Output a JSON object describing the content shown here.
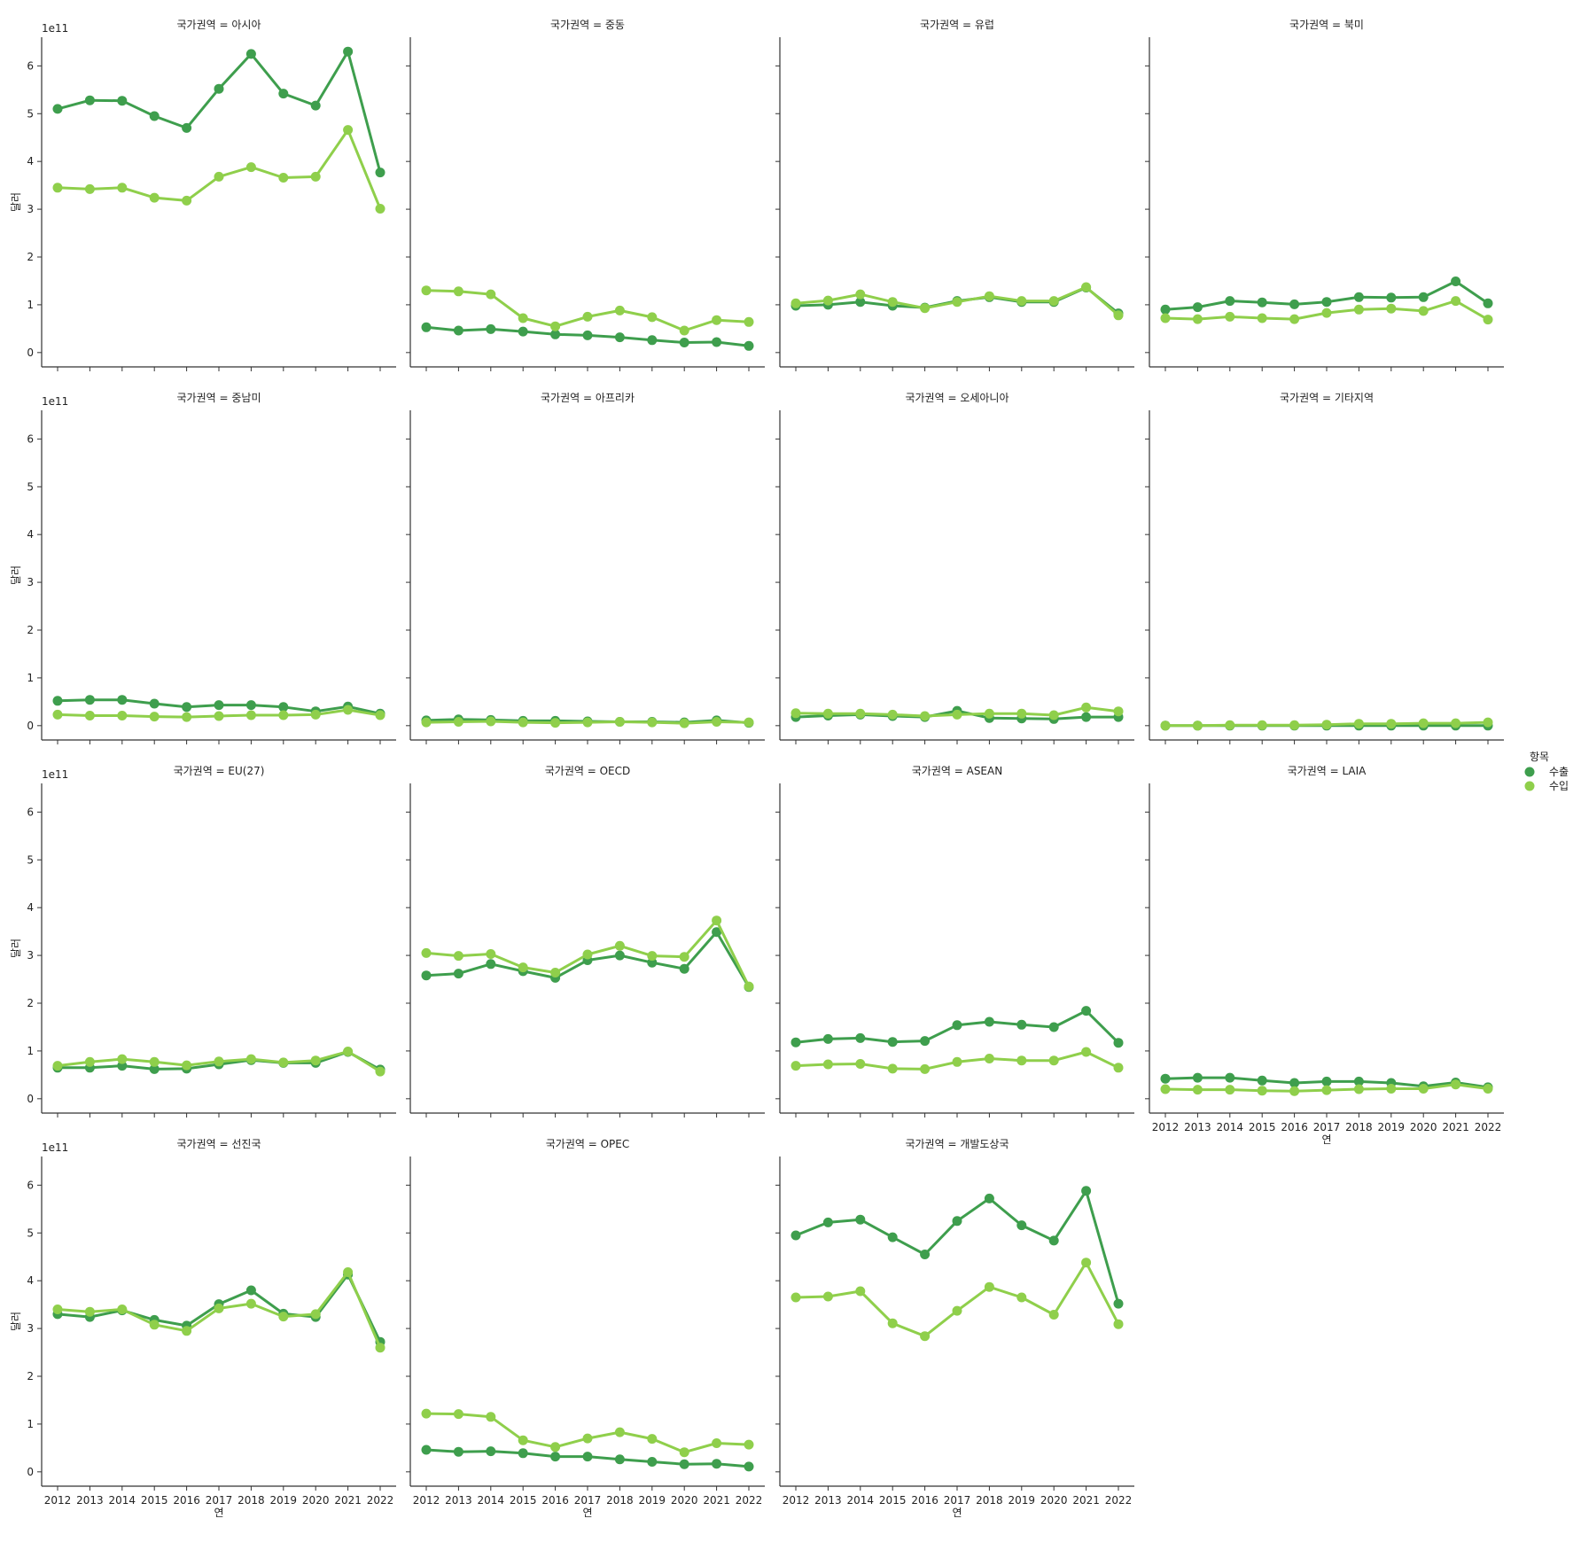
{
  "chart_data": {
    "type": "line",
    "facet_label": "국가권역",
    "facet_separator": " = ",
    "ylabel": "달러",
    "xlabel": "연",
    "y_scale_label": "1e11",
    "yticks": [
      0,
      1,
      2,
      3,
      4,
      5,
      6
    ],
    "ylim": [
      -0.3,
      6.6
    ],
    "x": [
      "2012",
      "2013",
      "2014",
      "2015",
      "2016",
      "2017",
      "2018",
      "2019",
      "2020",
      "2021",
      "2022"
    ],
    "legend": {
      "title": "항목",
      "placement": "right",
      "entries": [
        "수출",
        "수입"
      ]
    },
    "colors": {
      "수출": "#3e9e4d",
      "수입": "#8fcf4b"
    },
    "panels": [
      {
        "region": "아시아",
        "series": [
          {
            "name": "수출",
            "values": [
              5.1,
              5.28,
              5.27,
              4.95,
              4.7,
              5.52,
              6.25,
              5.42,
              5.17,
              6.3,
              3.77
            ]
          },
          {
            "name": "수입",
            "values": [
              3.45,
              3.42,
              3.45,
              3.24,
              3.18,
              3.68,
              3.88,
              3.66,
              3.68,
              4.66,
              3.01
            ]
          }
        ]
      },
      {
        "region": "중동",
        "series": [
          {
            "name": "수출",
            "values": [
              0.53,
              0.46,
              0.49,
              0.44,
              0.38,
              0.36,
              0.32,
              0.26,
              0.21,
              0.22,
              0.14
            ]
          },
          {
            "name": "수입",
            "values": [
              1.3,
              1.28,
              1.22,
              0.72,
              0.55,
              0.75,
              0.88,
              0.74,
              0.46,
              0.68,
              0.64
            ]
          }
        ]
      },
      {
        "region": "유럽",
        "series": [
          {
            "name": "수출",
            "values": [
              0.98,
              1.0,
              1.06,
              0.98,
              0.94,
              1.08,
              1.16,
              1.06,
              1.06,
              1.36,
              0.82
            ]
          },
          {
            "name": "수입",
            "values": [
              1.03,
              1.09,
              1.22,
              1.06,
              0.93,
              1.06,
              1.18,
              1.08,
              1.08,
              1.37,
              0.78
            ]
          }
        ]
      },
      {
        "region": "북미",
        "series": [
          {
            "name": "수출",
            "values": [
              0.9,
              0.95,
              1.08,
              1.05,
              1.01,
              1.06,
              1.16,
              1.15,
              1.16,
              1.49,
              1.03
            ]
          },
          {
            "name": "수입",
            "values": [
              0.72,
              0.7,
              0.75,
              0.72,
              0.7,
              0.83,
              0.9,
              0.92,
              0.87,
              1.08,
              0.69
            ]
          }
        ]
      },
      {
        "region": "중남미",
        "series": [
          {
            "name": "수출",
            "values": [
              0.52,
              0.54,
              0.54,
              0.46,
              0.39,
              0.43,
              0.43,
              0.39,
              0.3,
              0.4,
              0.25
            ]
          },
          {
            "name": "수입",
            "values": [
              0.23,
              0.21,
              0.21,
              0.19,
              0.18,
              0.2,
              0.22,
              0.22,
              0.23,
              0.33,
              0.22
            ]
          }
        ]
      },
      {
        "region": "아프리카",
        "series": [
          {
            "name": "수출",
            "values": [
              0.11,
              0.13,
              0.12,
              0.1,
              0.1,
              0.09,
              0.08,
              0.08,
              0.07,
              0.11,
              0.06
            ]
          },
          {
            "name": "수입",
            "values": [
              0.07,
              0.08,
              0.09,
              0.07,
              0.06,
              0.07,
              0.08,
              0.07,
              0.05,
              0.08,
              0.07
            ]
          }
        ]
      },
      {
        "region": "오세아니아",
        "series": [
          {
            "name": "수출",
            "values": [
              0.18,
              0.21,
              0.23,
              0.2,
              0.18,
              0.31,
              0.16,
              0.15,
              0.14,
              0.18,
              0.18
            ]
          },
          {
            "name": "수입",
            "values": [
              0.26,
              0.25,
              0.25,
              0.23,
              0.2,
              0.23,
              0.25,
              0.25,
              0.22,
              0.38,
              0.3
            ]
          }
        ]
      },
      {
        "region": "기타지역",
        "series": [
          {
            "name": "수출",
            "values": [
              0.0,
              0.0,
              0.0,
              0.0,
              0.0,
              0.0,
              0.0,
              0.0,
              0.0,
              0.0,
              0.0
            ]
          },
          {
            "name": "수입",
            "values": [
              0.0,
              0.0,
              0.01,
              0.01,
              0.01,
              0.02,
              0.04,
              0.04,
              0.05,
              0.05,
              0.07
            ]
          }
        ]
      },
      {
        "region": "EU(27)",
        "series": [
          {
            "name": "수출",
            "values": [
              0.65,
              0.65,
              0.69,
              0.62,
              0.63,
              0.72,
              0.81,
              0.75,
              0.75,
              0.98,
              0.61
            ]
          },
          {
            "name": "수입",
            "values": [
              0.69,
              0.77,
              0.83,
              0.77,
              0.7,
              0.78,
              0.83,
              0.76,
              0.8,
              0.99,
              0.57
            ]
          }
        ]
      },
      {
        "region": "OECD",
        "series": [
          {
            "name": "수출",
            "values": [
              2.58,
              2.62,
              2.82,
              2.67,
              2.53,
              2.9,
              3.0,
              2.85,
              2.72,
              3.49,
              2.34
            ]
          },
          {
            "name": "수입",
            "values": [
              3.05,
              2.99,
              3.03,
              2.75,
              2.64,
              3.02,
              3.2,
              2.99,
              2.97,
              3.73,
              2.35
            ]
          }
        ]
      },
      {
        "region": "ASEAN",
        "series": [
          {
            "name": "수출",
            "values": [
              1.18,
              1.25,
              1.27,
              1.19,
              1.21,
              1.54,
              1.61,
              1.55,
              1.5,
              1.84,
              1.17
            ]
          },
          {
            "name": "수입",
            "values": [
              0.69,
              0.72,
              0.73,
              0.63,
              0.62,
              0.77,
              0.84,
              0.8,
              0.8,
              0.98,
              0.65
            ]
          }
        ]
      },
      {
        "region": "LAIA",
        "series": [
          {
            "name": "수출",
            "values": [
              0.42,
              0.44,
              0.44,
              0.38,
              0.33,
              0.36,
              0.36,
              0.33,
              0.26,
              0.34,
              0.24
            ]
          },
          {
            "name": "수입",
            "values": [
              0.2,
              0.19,
              0.19,
              0.17,
              0.16,
              0.18,
              0.2,
              0.21,
              0.21,
              0.3,
              0.21
            ]
          }
        ]
      },
      {
        "region": "선진국",
        "series": [
          {
            "name": "수출",
            "values": [
              3.3,
              3.24,
              3.38,
              3.18,
              3.06,
              3.51,
              3.8,
              3.31,
              3.24,
              4.13,
              2.72
            ]
          },
          {
            "name": "수입",
            "values": [
              3.4,
              3.35,
              3.4,
              3.08,
              2.95,
              3.42,
              3.52,
              3.25,
              3.3,
              4.18,
              2.6
            ]
          }
        ]
      },
      {
        "region": "OPEC",
        "series": [
          {
            "name": "수출",
            "values": [
              0.46,
              0.42,
              0.43,
              0.39,
              0.32,
              0.32,
              0.26,
              0.21,
              0.16,
              0.17,
              0.11
            ]
          },
          {
            "name": "수입",
            "values": [
              1.22,
              1.21,
              1.15,
              0.66,
              0.52,
              0.7,
              0.83,
              0.69,
              0.41,
              0.6,
              0.57
            ]
          }
        ]
      },
      {
        "region": "개발도상국",
        "series": [
          {
            "name": "수출",
            "values": [
              4.95,
              5.22,
              5.28,
              4.91,
              4.55,
              5.25,
              5.72,
              5.16,
              4.84,
              5.88,
              3.52
            ]
          },
          {
            "name": "수입",
            "values": [
              3.65,
              3.67,
              3.78,
              3.11,
              2.84,
              3.37,
              3.87,
              3.65,
              3.29,
              4.38,
              3.09
            ]
          }
        ]
      }
    ]
  }
}
